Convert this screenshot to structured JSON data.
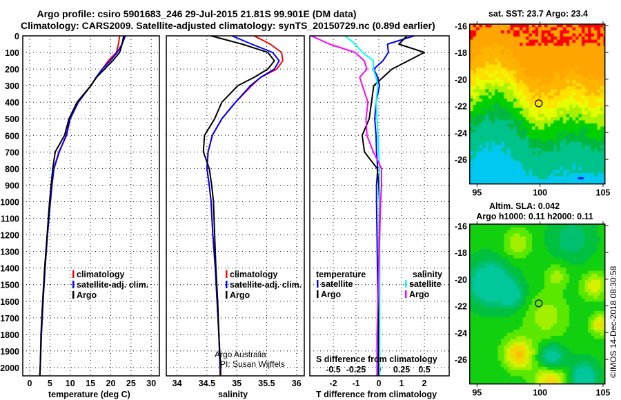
{
  "title": {
    "line1": "Argo profile: csiro 5901683_246 29-Jul-2015 21.81S 99.901E (DM data)",
    "line2": "Climatology: CARS2009. Satellite-adjusted climatology: synTS_20150729.nc (0.89d earlier)"
  },
  "chart_data": [
    {
      "id": "temperature",
      "type": "line",
      "xlabel": "temperature (deg C)",
      "ylabel": "depth",
      "xlim": [
        -1.7,
        32
      ],
      "ylim": [
        2050,
        0
      ],
      "xticks": [
        "0",
        "5",
        "10",
        "15",
        "20",
        "25",
        "30"
      ],
      "yticks": [
        "0",
        "100",
        "200",
        "300",
        "400",
        "500",
        "600",
        "700",
        "800",
        "900",
        "1000",
        "1100",
        "1200",
        "1300",
        "1400",
        "1500",
        "1600",
        "1700",
        "1800",
        "1900",
        "2000"
      ],
      "grid": true,
      "legend": {
        "position": "center-left",
        "entries": [
          "climatology",
          "satellite-adj. clim.",
          "Argo"
        ]
      },
      "depth": [
        0,
        50,
        100,
        150,
        200,
        250,
        300,
        400,
        500,
        600,
        700,
        800,
        900,
        1000,
        1200,
        1400,
        1600,
        1800,
        2000,
        2050
      ],
      "series": [
        {
          "name": "climatology",
          "color": "#ff0000",
          "values": [
            22.2,
            21.9,
            21.4,
            19.4,
            17.9,
            16.5,
            15.1,
            12.0,
            10.0,
            9.1,
            7.2,
            6.0,
            5.5,
            5.1,
            4.4,
            3.8,
            3.3,
            2.9,
            2.6,
            2.5
          ]
        },
        {
          "name": "satellite-adj. clim.",
          "color": "#0000ff",
          "values": [
            23.6,
            22.8,
            21.6,
            19.9,
            17.9,
            16.4,
            15.1,
            12.0,
            10.0,
            9.0,
            7.3,
            6.0,
            5.5,
            5.1,
            4.4,
            3.8,
            3.3,
            2.9,
            2.6,
            2.5
          ]
        },
        {
          "name": "Argo",
          "color": "#000000",
          "values": [
            23.2,
            22.8,
            22.2,
            20.5,
            18.5,
            16.5,
            15.1,
            11.7,
            9.7,
            8.6,
            6.3,
            5.7,
            5.3,
            4.9,
            4.3,
            3.7,
            3.2,
            2.8,
            2.6,
            2.5
          ]
        }
      ]
    },
    {
      "id": "salinity",
      "type": "line",
      "xlabel": "salinity",
      "xlim": [
        33.82,
        36.13
      ],
      "ylim": [
        2050,
        0
      ],
      "xticks": [
        "34",
        "34.5",
        "35",
        "35.5",
        "36"
      ],
      "grid": true,
      "legend": {
        "position": "center-right",
        "entries": [
          "climatology",
          "satellite-adj. clim.",
          "Argo"
        ]
      },
      "annotations": [
        "Argo Australia",
        "PI: Susan Wijffels"
      ],
      "depth": [
        0,
        50,
        100,
        150,
        200,
        250,
        300,
        400,
        500,
        600,
        700,
        800,
        900,
        1000,
        1200,
        1400,
        1600,
        1800,
        2000,
        2050
      ],
      "series": [
        {
          "name": "climatology",
          "color": "#ff0000",
          "values": [
            35.29,
            35.56,
            35.75,
            35.77,
            35.67,
            35.4,
            35.25,
            34.98,
            34.75,
            34.59,
            34.52,
            34.5,
            34.54,
            34.57,
            34.6,
            34.64,
            34.67,
            34.7,
            34.72,
            34.72
          ]
        },
        {
          "name": "satellite-adj. clim.",
          "color": "#0000ff",
          "values": [
            34.92,
            35.25,
            35.6,
            35.71,
            35.63,
            35.4,
            35.23,
            34.98,
            34.75,
            34.59,
            34.52,
            34.5,
            34.54,
            34.57,
            34.6,
            34.64,
            34.67,
            34.7,
            34.72,
            34.73
          ]
        },
        {
          "name": "Argo",
          "color": "#000000",
          "values": [
            34.57,
            35.09,
            35.52,
            35.63,
            35.52,
            35.29,
            35.02,
            34.75,
            34.63,
            34.46,
            34.44,
            34.54,
            34.58,
            34.61,
            34.63,
            34.65,
            34.68,
            34.7,
            34.73,
            34.73
          ]
        }
      ]
    },
    {
      "id": "difference",
      "type": "line",
      "xlabel": "T difference from climatology",
      "s_xlabel": "S difference from climatology",
      "xlim": [
        -3.03,
        3.09
      ],
      "s_xlim": [
        -0.7575,
        0.7725
      ],
      "ylim": [
        2050,
        0
      ],
      "xticks": [
        "-2",
        "-1",
        "0",
        "1",
        "2"
      ],
      "s_xticks": [
        "-0.5",
        "-0.25",
        "0",
        "0.25",
        "0.5"
      ],
      "grid": true,
      "legend": {
        "temperature": {
          "heading": "temperature",
          "entries": [
            "satellite",
            "Argo"
          ]
        },
        "salinity": {
          "heading": "salinity",
          "entries": [
            "satellite",
            "Argo"
          ]
        }
      },
      "depth": [
        0,
        50,
        100,
        150,
        200,
        250,
        300,
        400,
        500,
        600,
        700,
        800,
        900,
        1000,
        1200,
        1400,
        1600,
        1800,
        2000,
        2050
      ],
      "series": [
        {
          "name": "T satellite",
          "axis": "T",
          "color": "#0000ff",
          "values": [
            1.55,
            0.38,
            0.42,
            0.18,
            -0.22,
            -0.05,
            0.03,
            -0.12,
            -0.18,
            -0.12,
            -0.1,
            -0.05,
            -0.1,
            -0.1,
            -0.08,
            -0.06,
            -0.04,
            -0.03,
            -0.02,
            -0.02
          ]
        },
        {
          "name": "T Argo",
          "axis": "T",
          "color": "#000000",
          "values": [
            1.24,
            0.88,
            2.0,
            1.29,
            0.58,
            0.18,
            -0.22,
            -0.32,
            -0.42,
            -0.73,
            -0.63,
            -0.07,
            0.0,
            0.03,
            0.02,
            0.0,
            0.0,
            0.0,
            0.0,
            0.0
          ]
        },
        {
          "name": "S satellite",
          "axis": "S",
          "color": "#00ffff",
          "values": [
            -0.37,
            -0.26,
            -0.18,
            -0.06,
            -0.06,
            -0.03,
            -0.01,
            -0.03,
            -0.02,
            -0.01,
            0.0,
            0.01,
            0.01,
            0.01,
            0.01,
            0.01,
            0.01,
            0.01,
            0.01,
            0.01
          ]
        },
        {
          "name": "S Argo",
          "axis": "S",
          "color": "#ff00ff",
          "values": [
            -0.74,
            -0.54,
            -0.26,
            -0.16,
            -0.13,
            -0.21,
            -0.18,
            -0.12,
            -0.14,
            -0.13,
            -0.06,
            0.03,
            0.03,
            0.02,
            0.01,
            0.0,
            -0.01,
            -0.02,
            -0.02,
            -0.02
          ]
        }
      ]
    },
    {
      "id": "sst_map",
      "type": "heatmap",
      "title": "sat. SST: 23.7 Argo: 23.4",
      "xlim": [
        94.42,
        105.15
      ],
      "ylim": [
        -27.84,
        -15.88
      ],
      "xticks": [
        "95",
        "100",
        "105"
      ],
      "yticks": [
        "-16",
        "-18",
        "-20",
        "-22",
        "-24",
        "-26"
      ],
      "argo_position": {
        "lon": 99.901,
        "lat": -21.81
      }
    },
    {
      "id": "sla_map",
      "type": "heatmap",
      "title": "Altim. SLA: 0.042",
      "subtitle": "Argo h1000: 0.11 h2000: 0.11",
      "xlim": [
        94.42,
        105.15
      ],
      "ylim": [
        -27.84,
        -15.88
      ],
      "xticks": [
        "95",
        "100",
        "105"
      ],
      "yticks": [
        "-16",
        "-18",
        "-20",
        "-22",
        "-24",
        "-26"
      ],
      "argo_position": {
        "lon": 99.901,
        "lat": -21.81
      }
    }
  ],
  "copyright": "©IMOS 14-Dec-2018 08:30:58"
}
